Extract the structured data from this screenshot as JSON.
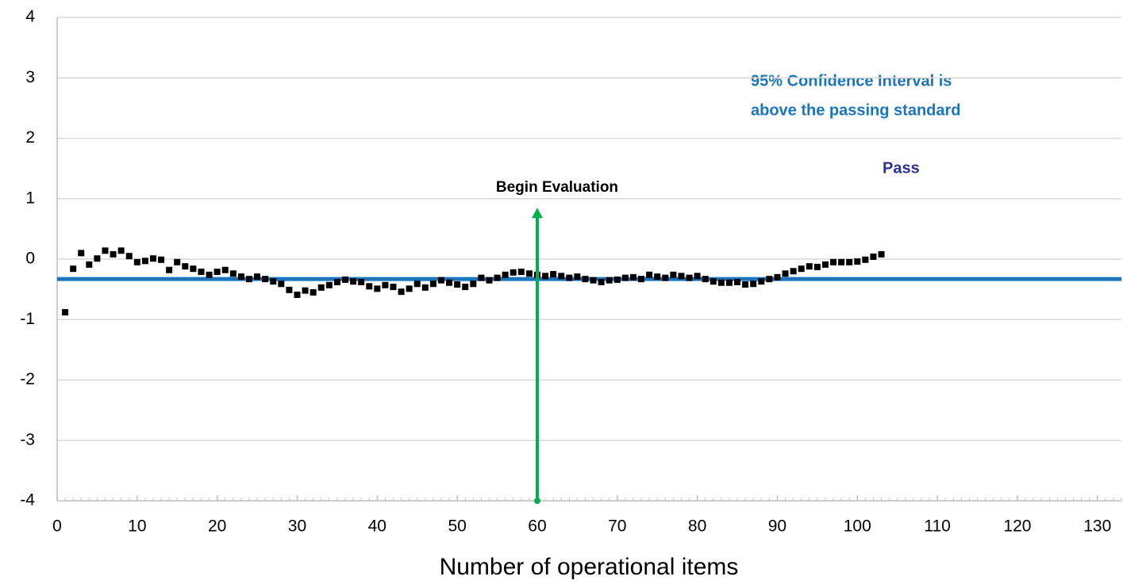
{
  "chart_data": {
    "type": "scatter",
    "x_label": "Number of operational items",
    "x": [
      1,
      2,
      3,
      4,
      5,
      6,
      7,
      8,
      9,
      10,
      11,
      12,
      13,
      14,
      15,
      16,
      17,
      18,
      19,
      20,
      21,
      22,
      23,
      24,
      25,
      26,
      27,
      28,
      29,
      30,
      31,
      32,
      33,
      34,
      35,
      36,
      37,
      38,
      39,
      40,
      41,
      42,
      43,
      44,
      45,
      46,
      47,
      48,
      49,
      50,
      51,
      52,
      53,
      54,
      55,
      56,
      57,
      58,
      59,
      60,
      61,
      62,
      63,
      64,
      65,
      66,
      67,
      68,
      69,
      70,
      71,
      72,
      73,
      74,
      75,
      76,
      77,
      78,
      79,
      80,
      81,
      82,
      83,
      84,
      85,
      86,
      87,
      88,
      89,
      90,
      91,
      92,
      93,
      94,
      95,
      96,
      97,
      98,
      99,
      100,
      101,
      102,
      103
    ],
    "values": [
      -0.88,
      -0.16,
      0.1,
      -0.09,
      0.01,
      0.14,
      0.08,
      0.14,
      0.05,
      -0.05,
      -0.03,
      0.01,
      -0.01,
      -0.18,
      -0.05,
      -0.12,
      -0.16,
      -0.21,
      -0.26,
      -0.21,
      -0.18,
      -0.24,
      -0.29,
      -0.33,
      -0.29,
      -0.33,
      -0.37,
      -0.41,
      -0.51,
      -0.59,
      -0.52,
      -0.55,
      -0.47,
      -0.43,
      -0.38,
      -0.34,
      -0.37,
      -0.38,
      -0.45,
      -0.49,
      -0.43,
      -0.46,
      -0.54,
      -0.49,
      -0.41,
      -0.47,
      -0.41,
      -0.35,
      -0.39,
      -0.42,
      -0.46,
      -0.41,
      -0.31,
      -0.35,
      -0.31,
      -0.26,
      -0.22,
      -0.21,
      -0.24,
      -0.26,
      -0.28,
      -0.25,
      -0.28,
      -0.31,
      -0.29,
      -0.33,
      -0.35,
      -0.38,
      -0.35,
      -0.34,
      -0.31,
      -0.3,
      -0.33,
      -0.26,
      -0.29,
      -0.31,
      -0.26,
      -0.28,
      -0.31,
      -0.28,
      -0.33,
      -0.37,
      -0.39,
      -0.39,
      -0.38,
      -0.42,
      -0.41,
      -0.37,
      -0.33,
      -0.3,
      -0.24,
      -0.2,
      -0.16,
      -0.12,
      -0.13,
      -0.09,
      -0.05,
      -0.05,
      -0.05,
      -0.04,
      -0.01,
      0.04,
      0.08
    ],
    "color": "#000000",
    "reference_line": {
      "y": -0.33,
      "color": "#1b75bc"
    },
    "arrow": {
      "x": 60,
      "y": [
        -4,
        0.85
      ],
      "color": "#00b050",
      "label": "Begin Evaluation"
    },
    "annotations": [
      "95% Confidence Interval is",
      "above the passing standard",
      "Pass"
    ],
    "xlim": [
      0,
      133
    ],
    "xticks": [
      0,
      10,
      20,
      30,
      40,
      50,
      60,
      70,
      80,
      90,
      100,
      110,
      120,
      130
    ],
    "ylim": [
      -4,
      4
    ],
    "yticks": [
      -4,
      -3,
      -2,
      -1,
      0,
      1,
      2,
      3,
      4
    ],
    "grid": true
  }
}
